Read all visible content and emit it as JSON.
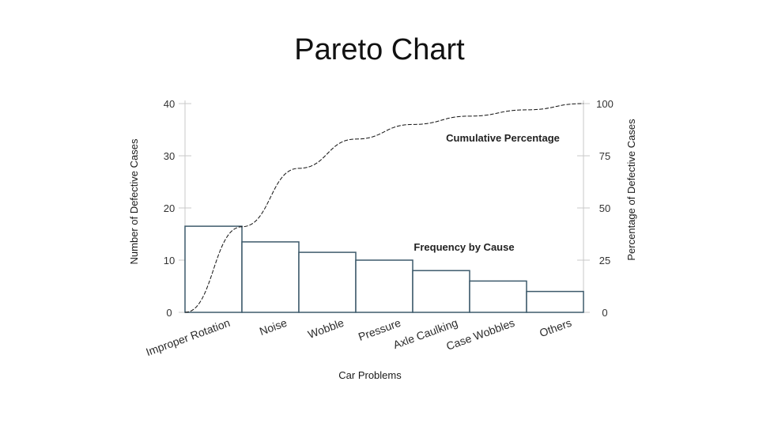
{
  "slide_title": "Pareto Chart",
  "chart_data": {
    "type": "bar",
    "title": "",
    "xlabel": "Car Problems",
    "ylabel": "Number of Defective Cases",
    "y2label": "Percentage  of Defective Cases",
    "categories": [
      "Improper Rotation",
      "Noise",
      "Wobble",
      "Pressure",
      "Axle Caulking",
      "Case Wobbles",
      "Others"
    ],
    "series": [
      {
        "name": "Frequency by Cause",
        "type": "bar",
        "axis": "left",
        "values": [
          16.5,
          13.5,
          11.5,
          10,
          8,
          6,
          4
        ]
      },
      {
        "name": "Cumulative Percentage",
        "type": "line",
        "axis": "right",
        "x": [
          0,
          1,
          2,
          3,
          4,
          5,
          6,
          7
        ],
        "values": [
          0,
          41,
          69,
          83,
          90,
          94,
          97,
          100
        ]
      }
    ],
    "ylim": [
      0,
      40
    ],
    "yticks": [
      "0",
      "10",
      "20",
      "30",
      "40"
    ],
    "y2lim": [
      0,
      100
    ],
    "y2ticks": [
      "0",
      "25",
      "50",
      "75",
      "100"
    ],
    "annotations": [
      "Cumulative Percentage",
      "Frequency by Cause"
    ],
    "grid": false,
    "colors": {
      "bar_stroke": "#3d5a6b",
      "line": "#111111",
      "axis": "#c9c9c9"
    }
  }
}
